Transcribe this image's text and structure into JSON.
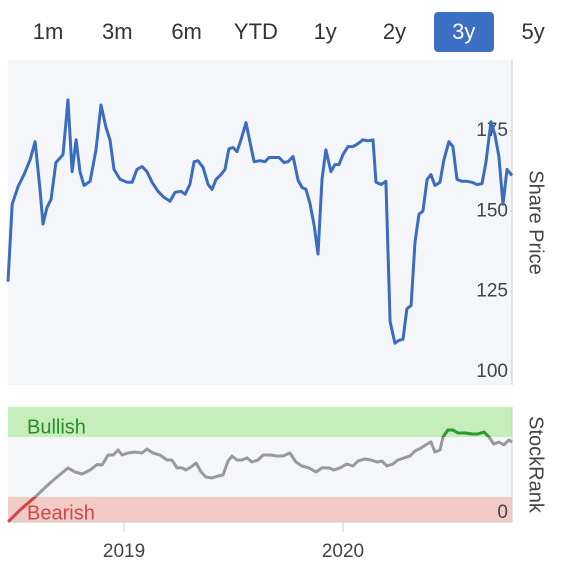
{
  "tabs": [
    "1m",
    "3m",
    "6m",
    "YTD",
    "1y",
    "2y",
    "3y",
    "5y"
  ],
  "selected_tab": 6,
  "chart_data": [
    {
      "type": "line",
      "ylabel": "Share Price",
      "color": "#3a6cc0",
      "xlim": [
        2018.47,
        2020.772
      ],
      "ylim": [
        96,
        197
      ],
      "yticks": [
        100,
        125,
        150,
        175
      ],
      "x": [
        2018.47,
        2018.489,
        2018.516,
        2018.543,
        2018.571,
        2018.594,
        2018.616,
        2018.63,
        2018.648,
        2018.667,
        2018.689,
        2018.721,
        2018.744,
        2018.763,
        2018.781,
        2018.799,
        2018.817,
        2018.845,
        2018.872,
        2018.895,
        2018.918,
        2018.936,
        2018.954,
        2018.982,
        2019.014,
        2019.037,
        2019.059,
        2019.082,
        2019.105,
        2019.128,
        2019.155,
        2019.183,
        2019.21,
        2019.233,
        2019.26,
        2019.279,
        2019.301,
        2019.32,
        2019.338,
        2019.361,
        2019.384,
        2019.402,
        2019.42,
        2019.443,
        2019.461,
        2019.479,
        2019.498,
        2019.516,
        2019.534,
        2019.557,
        2019.575,
        2019.594,
        2019.621,
        2019.644,
        2019.662,
        2019.685,
        2019.708,
        2019.731,
        2019.749,
        2019.772,
        2019.795,
        2019.813,
        2019.831,
        2019.849,
        2019.868,
        2019.886,
        2019.904,
        2019.922,
        2019.945,
        2019.963,
        2019.982,
        2020.0,
        2020.023,
        2020.046,
        2020.068,
        2020.091,
        2020.114,
        2020.137,
        2020.151,
        2020.174,
        2020.196,
        2020.215,
        2020.237,
        2020.256,
        2020.274,
        2020.292,
        2020.311,
        2020.329,
        2020.347,
        2020.365,
        2020.384,
        2020.402,
        2020.42,
        2020.443,
        2020.461,
        2020.484,
        2020.502,
        2020.521,
        2020.543,
        2020.566,
        2020.589,
        2020.612,
        2020.635,
        2020.653,
        2020.676,
        2020.694,
        2020.712,
        2020.731,
        2020.749,
        2020.772
      ],
      "values": [
        128.1,
        152.2,
        157.7,
        161.4,
        166,
        171.6,
        156.8,
        146,
        151.2,
        153.7,
        165.1,
        167.6,
        184.6,
        162.3,
        172.2,
        162.3,
        158,
        159.3,
        169.1,
        183,
        175.9,
        172.2,
        163,
        159.9,
        159,
        159,
        163,
        163.9,
        162.3,
        159,
        156.2,
        154.3,
        153.1,
        155.9,
        156.2,
        155.3,
        158.3,
        165.4,
        165.7,
        163.6,
        158.3,
        156.8,
        159.9,
        161.4,
        163,
        169.4,
        169.8,
        168.5,
        172.2,
        177.5,
        171.6,
        165.4,
        165.7,
        165.4,
        166.7,
        166.7,
        166.7,
        165.1,
        165.4,
        167,
        159.6,
        157.4,
        156.8,
        152.5,
        145.7,
        136.7,
        159.9,
        169.1,
        162.3,
        164.5,
        164.5,
        167.6,
        170.1,
        170.1,
        171,
        172.2,
        171.9,
        172.2,
        159,
        158.3,
        159.3,
        115.7,
        109,
        109.9,
        110.2,
        119.7,
        120.7,
        140.4,
        149.1,
        150,
        159.9,
        161.4,
        158,
        159,
        166,
        171.6,
        170.1,
        159.9,
        159.3,
        159.3,
        159,
        158.3,
        158.6,
        165.1,
        177.8,
        173.8,
        167,
        152.2,
        163,
        161.1
      ]
    },
    {
      "type": "line",
      "ylabel": "StockRank",
      "color": "#999999",
      "annotations": [
        "Bullish",
        "Bearish"
      ],
      "xlim": [
        2018.47,
        2020.772
      ],
      "xticks": [
        2019,
        2020
      ],
      "ylim": [
        0,
        100
      ],
      "yticks": [
        0
      ],
      "x": [
        2018.47,
        2018.525,
        2018.594,
        2018.662,
        2018.744,
        2018.776,
        2018.808,
        2018.845,
        2018.877,
        2018.9,
        2018.927,
        2018.95,
        2018.973,
        2018.991,
        2019.018,
        2019.05,
        2019.082,
        2019.105,
        2019.132,
        2019.164,
        2019.196,
        2019.219,
        2019.242,
        2019.265,
        2019.283,
        2019.306,
        2019.329,
        2019.352,
        2019.374,
        2019.402,
        2019.429,
        2019.452,
        2019.475,
        2019.493,
        2019.516,
        2019.539,
        2019.562,
        2019.584,
        2019.612,
        2019.635,
        2019.667,
        2019.699,
        2019.726,
        2019.758,
        2019.785,
        2019.813,
        2019.845,
        2019.877,
        2019.904,
        2019.936,
        2019.959,
        2019.986,
        2020.018,
        2020.046,
        2020.068,
        2020.1,
        2020.128,
        2020.155,
        2020.178,
        2020.201,
        2020.228,
        2020.251,
        2020.279,
        2020.306,
        2020.329,
        2020.356,
        2020.384,
        2020.402,
        2020.42,
        2020.443,
        2020.457,
        2020.479,
        2020.502,
        2020.525,
        2020.557,
        2020.589,
        2020.616,
        2020.644,
        2020.667,
        2020.689,
        2020.712,
        2020.735,
        2020.758,
        2020.772
      ],
      "values": [
        0,
        10.4,
        21.7,
        33.9,
        47,
        43.5,
        41.7,
        45.2,
        50,
        49.6,
        58.3,
        58.3,
        62.6,
        58.3,
        60,
        60.9,
        60,
        63.5,
        60,
        58.3,
        53.9,
        53.9,
        47,
        47,
        45.2,
        47.8,
        51.3,
        43.5,
        39.1,
        38.3,
        40,
        40.9,
        53,
        57.4,
        53.9,
        53.9,
        55.7,
        52.2,
        53.9,
        58.3,
        58.3,
        57.4,
        57.4,
        60,
        52.2,
        48.7,
        47,
        43.5,
        47,
        47,
        45.2,
        47,
        50.4,
        48.7,
        53,
        54.8,
        53.9,
        52.2,
        53,
        48.7,
        50.4,
        53.9,
        55.7,
        57.4,
        61.7,
        64.3,
        67.8,
        69.6,
        60.9,
        62.6,
        73.9,
        80,
        80,
        77.4,
        77.4,
        76.5,
        76.5,
        78.3,
        73.9,
        67.8,
        69.6,
        67,
        71.3,
        69.6
      ]
    }
  ]
}
